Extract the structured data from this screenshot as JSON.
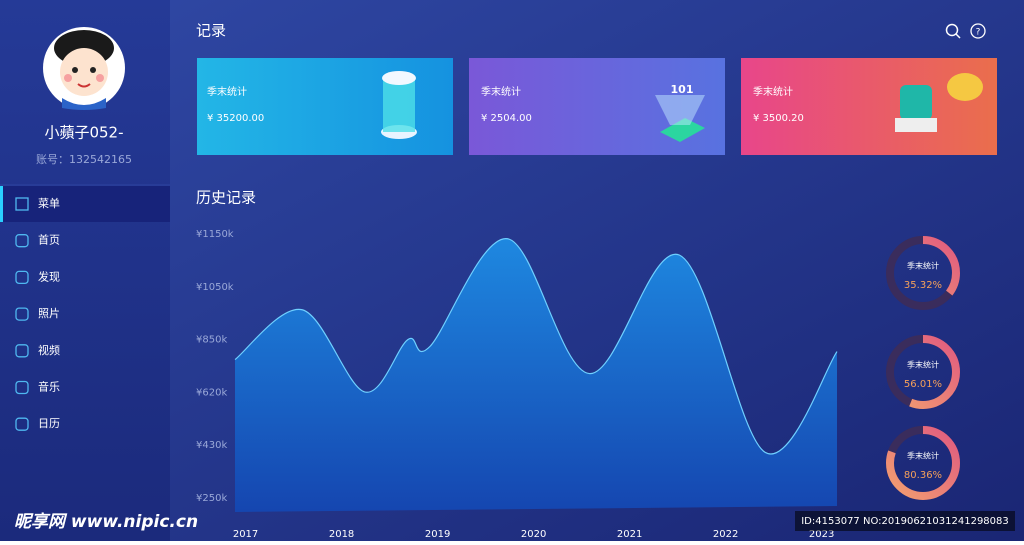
{
  "sidebar": {
    "name": "小蘋子052-",
    "account": "账号：132542165",
    "menu": [
      "菜单",
      "首页",
      "发现",
      "照片",
      "视频",
      "音乐",
      "日历"
    ]
  },
  "header": {
    "title": "记录"
  },
  "cards": [
    {
      "label": "季末统计",
      "amount": "¥ 35200.00"
    },
    {
      "label": "季末统计",
      "amount": "¥ 2504.00"
    },
    {
      "label": "季末统计",
      "amount": "¥ 3500.20"
    }
  ],
  "chart_data": [
    {
      "type": "area",
      "title": "历史记录",
      "x": [
        2016.89,
        2017.59,
        2018.24,
        2018.69,
        2018.92,
        2019.73,
        2020.58,
        2021.52,
        2022.41,
        2023.16
      ],
      "values": [
        763000,
        963000,
        622000,
        850000,
        820000,
        1141000,
        702000,
        1110000,
        406000,
        798000
      ],
      "xlim": [
        2016.89,
        2023.16
      ],
      "xticks": [
        2017,
        2018,
        2019,
        2020,
        2021,
        2022,
        2023
      ],
      "ylim": [
        250000,
        1150000
      ],
      "yticks": [
        {
          "value": 250000,
          "label": "¥250k"
        },
        {
          "value": 430000,
          "label": "¥430k"
        },
        {
          "value": 620000,
          "label": "¥620k"
        },
        {
          "value": 850000,
          "label": "¥850k"
        },
        {
          "value": 1050000,
          "label": "¥1050k"
        },
        {
          "value": 1150000,
          "label": "¥1150k"
        }
      ],
      "color": "#1b6fd6",
      "grid": false
    },
    {
      "type": "donut",
      "categories": [
        "季末统计",
        "季末统计",
        "季末统计"
      ],
      "values": [
        35.32,
        56.01,
        80.36
      ],
      "value_labels": [
        "35.32%",
        "56.01%",
        "80.36%"
      ],
      "ylim": [
        0,
        100
      ],
      "color": "#e8607a"
    }
  ],
  "watermark": {
    "site": "昵享网 www.nipic.cn",
    "id": "ID:4153077 NO:20190621031241298083"
  }
}
